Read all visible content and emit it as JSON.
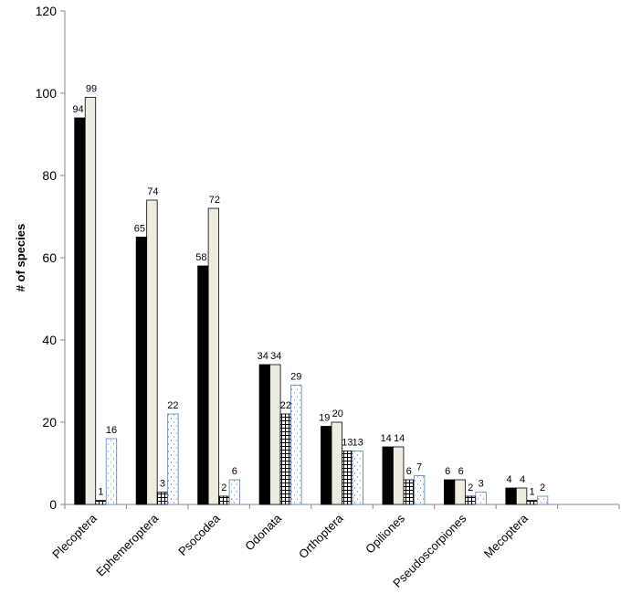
{
  "chart_data": {
    "type": "bar",
    "title": "",
    "xlabel": "",
    "ylabel": "# of species",
    "ylim": [
      0,
      120
    ],
    "yticks": [
      0,
      20,
      40,
      60,
      80,
      100,
      120
    ],
    "grid": false,
    "legend": "none",
    "categories": [
      "Plecoptera",
      "Ephemeroptera",
      "Psocodea",
      "Odonata",
      "Orthoptera",
      "Opiliones",
      "Pseudoscorpiones",
      "Mecoptera"
    ],
    "series": [
      {
        "values": [
          94,
          65,
          58,
          34,
          19,
          14,
          6,
          4
        ],
        "fill": "solid-black"
      },
      {
        "values": [
          99,
          74,
          72,
          34,
          20,
          14,
          6,
          4
        ],
        "fill": "beige"
      },
      {
        "values": [
          1,
          3,
          2,
          22,
          13,
          6,
          2,
          1
        ],
        "fill": "grid-hatch"
      },
      {
        "values": [
          16,
          22,
          6,
          29,
          13,
          7,
          3,
          2
        ],
        "fill": "dotted-blue-outline"
      }
    ],
    "data_labels": [
      [
        "94",
        "99",
        "1",
        "16"
      ],
      [
        "65",
        "74",
        "3",
        "22"
      ],
      [
        "58",
        "72",
        "2",
        "6"
      ],
      [
        "34",
        "34",
        "22",
        "29"
      ],
      [
        "19",
        "20",
        "13",
        "13"
      ],
      [
        "14",
        "14",
        "6",
        "7"
      ],
      [
        "6",
        "6",
        "2",
        "3"
      ],
      [
        "4",
        "4",
        "1",
        "2"
      ]
    ],
    "colors": {
      "black_series": "#000000",
      "beige_series": "#EEECE1",
      "hatch_series": "#ffffff",
      "dotted_series_border": "#4F81BD",
      "axis": "#888888"
    }
  }
}
